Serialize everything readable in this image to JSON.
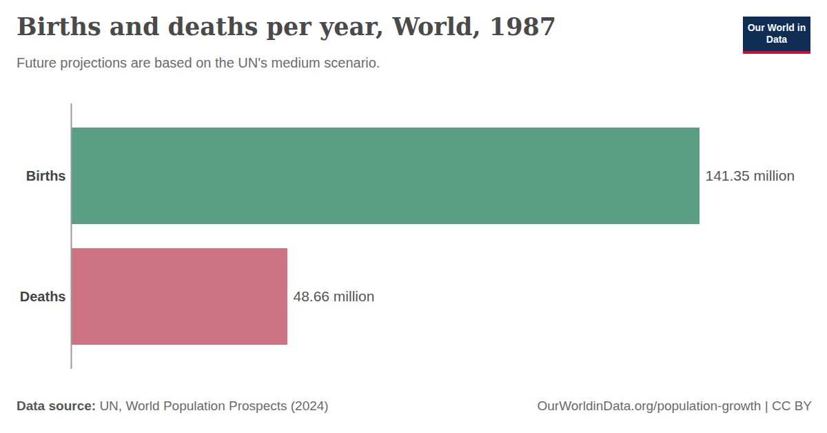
{
  "chart_data": {
    "type": "bar",
    "orientation": "horizontal",
    "title": "Births and deaths per year, World, 1987",
    "subtitle": "Future projections are based on the UN's medium scenario.",
    "logo": "Our World in Data",
    "source_label": "Data source:",
    "source": "UN, World Population Prospects (2024)",
    "url": "OurWorldinData.org/population-growth | CC BY",
    "categories": [
      "Births",
      "Deaths"
    ],
    "values": [
      141.35,
      48.66
    ],
    "value_labels": [
      "141.35 million",
      "48.66 million"
    ],
    "colors": [
      "#5a9e84",
      "#cc7282"
    ],
    "xlim": [
      0,
      141.35
    ],
    "data_labels": true,
    "tick_labels": "y",
    "grid": false
  }
}
